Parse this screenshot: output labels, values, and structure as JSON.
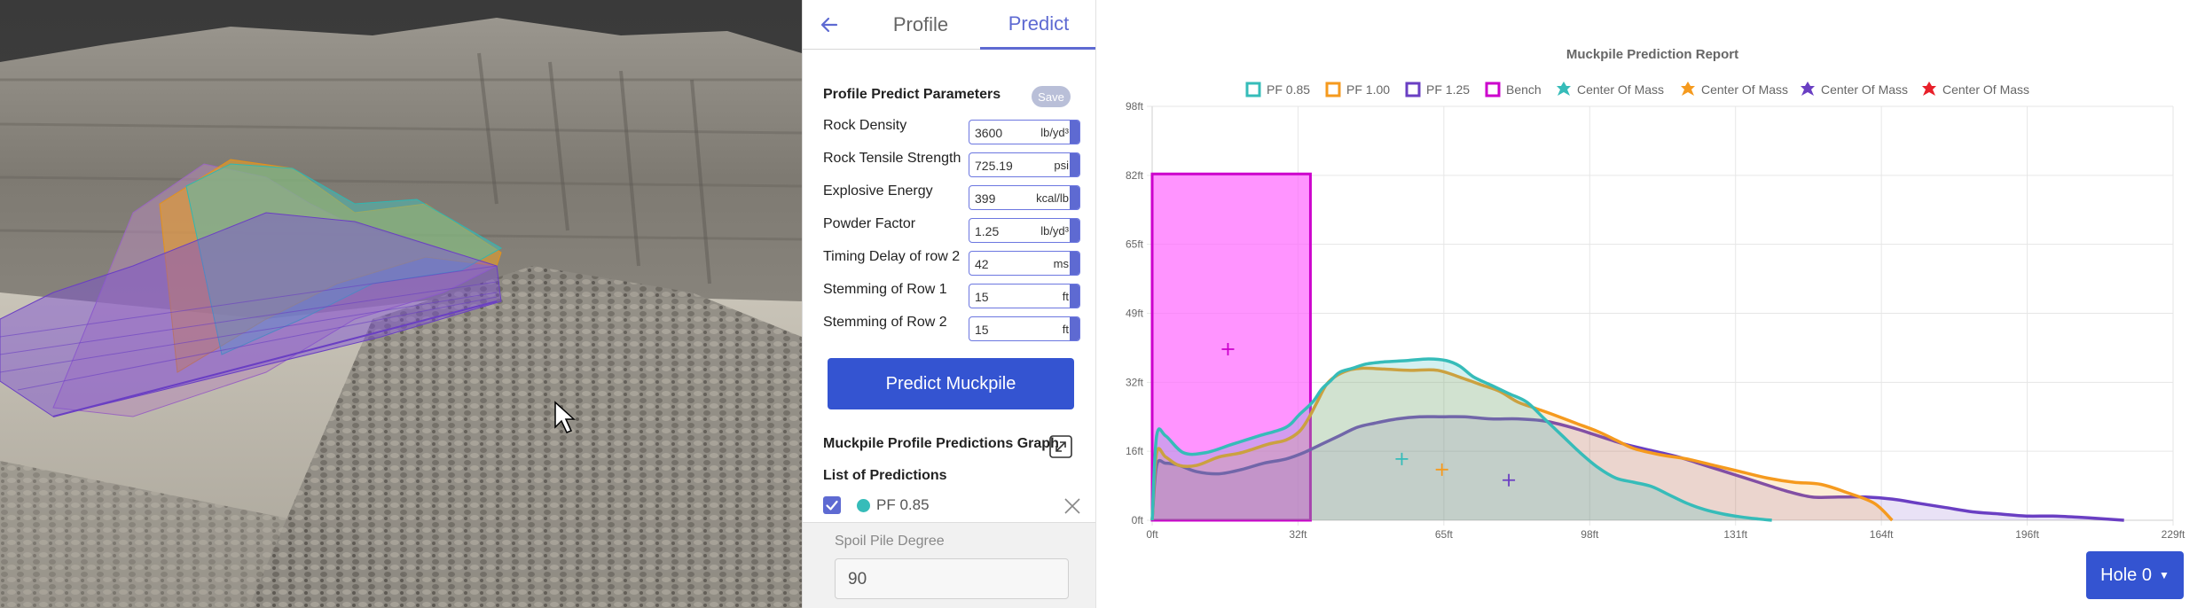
{
  "tabs": {
    "profile": "Profile",
    "predict": "Predict"
  },
  "params": {
    "title": "Profile Predict Parameters",
    "save_label": "Save",
    "rows": [
      {
        "label": "Rock Density",
        "value": "3600",
        "unit": "lb/yd³"
      },
      {
        "label": "Rock Tensile Strength",
        "value": "725.19",
        "unit": "psi"
      },
      {
        "label": "Explosive Energy",
        "value": "399",
        "unit": "kcal/lb"
      },
      {
        "label": "Powder Factor",
        "value": "1.25",
        "unit": "lb/yd³"
      },
      {
        "label": "Timing Delay of row 2",
        "value": "42",
        "unit": "ms"
      },
      {
        "label": "Stemming of Row 1",
        "value": "15",
        "unit": "ft"
      },
      {
        "label": "Stemming of Row 2",
        "value": "15",
        "unit": "ft"
      }
    ]
  },
  "predict_button": "Predict Muckpile",
  "graph_title": "Muckpile Profile Predictions Graph",
  "list_title": "List of Predictions",
  "predictions": [
    {
      "label": "PF 0.85",
      "color": "#36bcb9",
      "checked": true
    }
  ],
  "spoil": {
    "label": "Spoil Pile Degree",
    "value": "90"
  },
  "hole_button": "Hole 0",
  "icons": {
    "back": "arrow-left-icon",
    "expand": "expand-icon",
    "remove": "close-icon",
    "check": "checkmark-icon",
    "caret": "caret-down-icon"
  },
  "colors": {
    "accent": "#5e6ad2",
    "button": "#3454d1",
    "pf085": "#36bcb9",
    "pf100": "#f59a1e",
    "pf125": "#6a3fc3",
    "bench": "#cc00cc",
    "com4": "#e8202a"
  },
  "chart_data": {
    "type": "area",
    "title": "Muckpile Prediction Report",
    "xlabel": "",
    "ylabel": "",
    "xlim": [
      0,
      229
    ],
    "ylim": [
      0,
      98
    ],
    "x_ticks": [
      "0ft",
      "32ft",
      "65ft",
      "98ft",
      "131ft",
      "164ft",
      "196ft",
      "229ft"
    ],
    "y_ticks": [
      "0ft",
      "16ft",
      "32ft",
      "49ft",
      "65ft",
      "82ft",
      "98ft"
    ],
    "grid": true,
    "legend_position": "top",
    "legend": [
      "PF 0.85",
      "PF 1.00",
      "PF 1.25",
      "Bench",
      "Center Of Mass",
      "Center Of Mass",
      "Center Of Mass",
      "Center Of Mass"
    ],
    "bench": {
      "name": "Bench",
      "x": [
        0,
        35.5
      ],
      "height": 82
    },
    "series": [
      {
        "name": "PF 0.85",
        "x": [
          0,
          1,
          3,
          7,
          12,
          18,
          24,
          30,
          33,
          36,
          38,
          40,
          42,
          45,
          48,
          52,
          57,
          62,
          66,
          69,
          72,
          76,
          80,
          84,
          88,
          92,
          96,
          100,
          104,
          108,
          112,
          116,
          120,
          124,
          128,
          132,
          136,
          139
        ],
        "y": [
          0,
          20,
          20,
          16,
          16,
          18,
          20,
          22,
          25,
          28,
          31,
          33,
          35,
          36,
          37,
          37.5,
          37.8,
          38.2,
          37.8,
          36.5,
          34,
          32,
          30,
          28,
          24,
          20,
          16,
          12.5,
          10,
          9,
          8,
          6,
          4,
          2.5,
          1.5,
          0.8,
          0.3,
          0
        ]
      },
      {
        "name": "PF 1.00",
        "x": [
          0,
          1,
          3,
          6,
          10,
          15,
          20,
          26,
          30,
          33,
          35,
          37,
          39,
          41,
          44,
          47,
          52,
          58,
          64,
          70,
          74,
          78,
          82,
          86,
          90,
          95,
          100,
          104,
          108,
          114,
          120,
          126,
          132,
          138,
          144,
          150,
          156,
          162,
          166
        ],
        "y": [
          0,
          16,
          15,
          13,
          13,
          15,
          16,
          18,
          19,
          21,
          24,
          28,
          32,
          34,
          35.5,
          36,
          35.8,
          35.5,
          35.5,
          33.5,
          32,
          30.5,
          28,
          26.5,
          25,
          23,
          21,
          19,
          17,
          15.5,
          14.5,
          13,
          11.5,
          10,
          9,
          8.5,
          6.5,
          4,
          0
        ]
      },
      {
        "name": "PF 1.25",
        "x": [
          0,
          1,
          3,
          6,
          10,
          15,
          20,
          25,
          30,
          34,
          38,
          42,
          46,
          50,
          55,
          60,
          65,
          70,
          76,
          82,
          88,
          94,
          100,
          106,
          112,
          118,
          124,
          130,
          136,
          142,
          148,
          154,
          160,
          166,
          172,
          178,
          184,
          190,
          196,
          202,
          208,
          214,
          218
        ],
        "y": [
          0,
          13,
          13.5,
          13,
          11.5,
          11,
          12,
          13.5,
          14.5,
          16,
          18,
          20,
          22,
          23,
          24,
          24.5,
          24.5,
          24.5,
          24,
          24,
          23.5,
          22,
          20,
          18,
          16.5,
          15,
          13,
          11,
          9,
          7,
          5.5,
          5.5,
          5.5,
          5,
          4,
          3,
          2,
          1.5,
          1,
          1,
          0.7,
          0.3,
          0
        ]
      }
    ],
    "center_of_mass": [
      {
        "x": 17,
        "y": 40.5,
        "color": "#cc00cc"
      },
      {
        "x": 56,
        "y": 14.5,
        "color": "#36bcb9"
      },
      {
        "x": 65,
        "y": 12,
        "color": "#f59a1e"
      },
      {
        "x": 80,
        "y": 9.5,
        "color": "#6a3fc3"
      }
    ]
  }
}
